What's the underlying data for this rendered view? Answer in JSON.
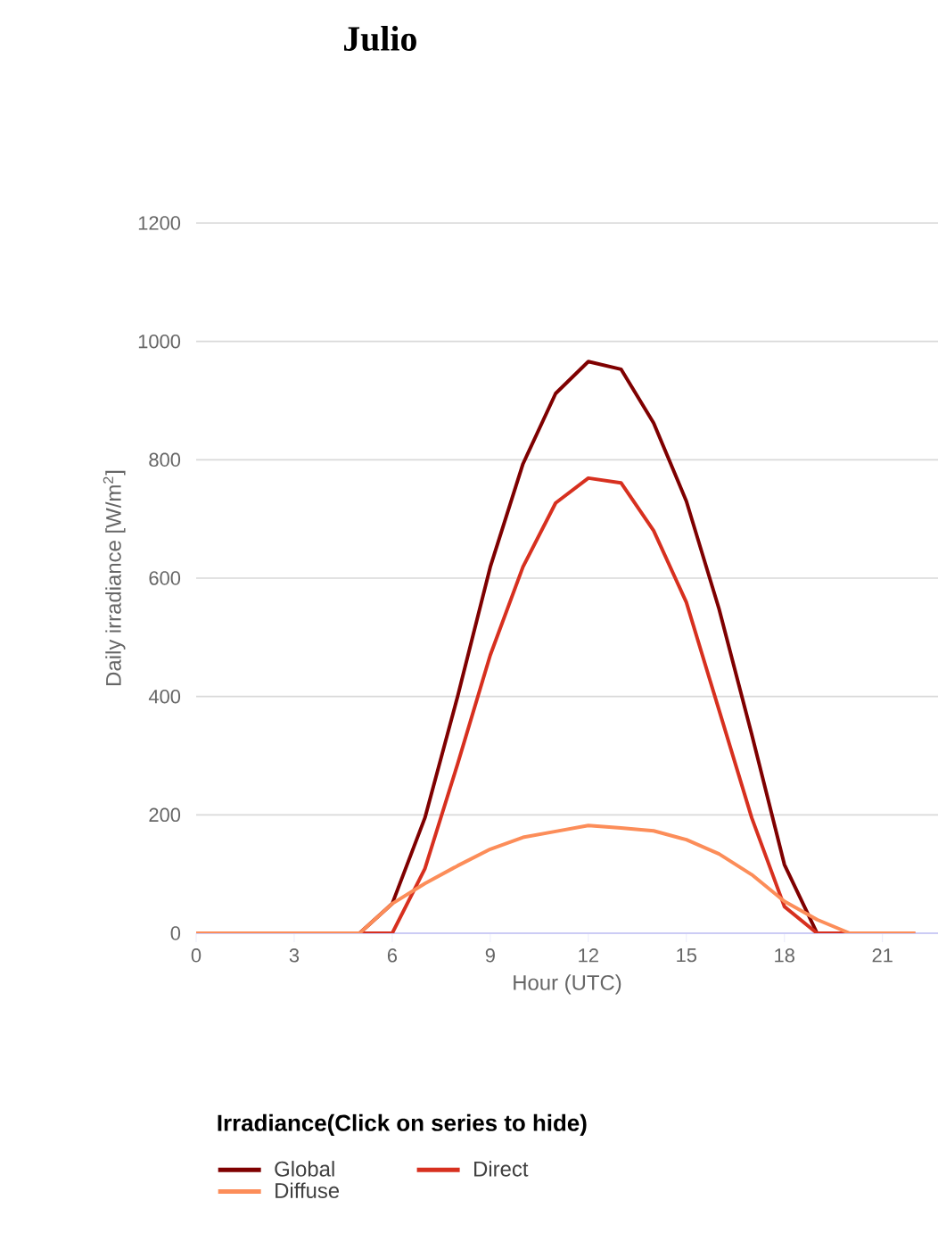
{
  "chart_data": {
    "type": "line",
    "title": "Julio",
    "xlabel": "Hour (UTC)",
    "ylabel": "Daily irradiance [W/m$^{2}$]",
    "legend_title": "Irradiance(Click on series to hide)",
    "x": [
      0,
      1,
      2,
      3,
      4,
      5,
      6,
      7,
      8,
      9,
      10,
      11,
      12,
      13,
      14,
      15,
      16,
      17,
      18,
      19,
      20,
      21,
      22
    ],
    "series": [
      {
        "name": "Global",
        "color": "#7f0000",
        "values": [
          null,
          null,
          null,
          null,
          0,
          0,
          50,
          195,
          400,
          619,
          793,
          912,
          966,
          953,
          862,
          730,
          548,
          336,
          116,
          0,
          0,
          null,
          null
        ]
      },
      {
        "name": "Direct",
        "color": "#d7301f",
        "values": [
          0,
          0,
          0,
          0,
          0,
          0,
          0,
          109,
          286,
          470,
          619,
          727,
          769,
          761,
          680,
          559,
          377,
          195,
          45,
          0,
          0,
          0,
          0
        ]
      },
      {
        "name": "Diffuse",
        "color": "#fc8d59",
        "values": [
          0,
          0,
          0,
          0,
          0,
          0,
          50,
          84,
          114,
          142,
          162,
          172,
          182,
          178,
          173,
          158,
          134,
          99,
          54,
          23,
          0,
          0,
          0
        ]
      }
    ],
    "xlim": [
      0,
      22.7
    ],
    "xticks": [
      0,
      3,
      6,
      9,
      12,
      15,
      18,
      21
    ],
    "ylim": [
      0,
      1200
    ],
    "yticks": [
      0,
      200,
      400,
      600,
      800,
      1000,
      1200
    ],
    "grid": "y",
    "legend": "bottom",
    "marker": "none",
    "line_style": "solid"
  }
}
